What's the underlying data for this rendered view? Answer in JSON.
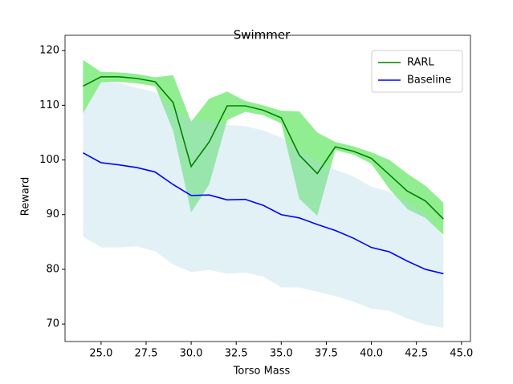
{
  "chart_data": {
    "type": "line",
    "title": "Swimmer",
    "x_label": "Torso Mass",
    "y_label": "Reward",
    "x": [
      24,
      25,
      26,
      27,
      28,
      29,
      30,
      31,
      32,
      33,
      34,
      35,
      36,
      37,
      38,
      39,
      40,
      41,
      42,
      43,
      44
    ],
    "series": [
      {
        "name": "RARL",
        "color": "#008000",
        "band_color": "#90ee90",
        "values": [
          113.5,
          115.2,
          115.2,
          114.9,
          114.3,
          110.5,
          98.8,
          103.3,
          109.9,
          109.9,
          109.1,
          107.7,
          100.9,
          97.5,
          102.4,
          101.6,
          100.3,
          97.3,
          94.3,
          92.5,
          89.2
        ],
        "upper": [
          118.3,
          116.1,
          116.0,
          115.7,
          115.1,
          115.5,
          107.0,
          111.2,
          112.5,
          110.8,
          110.0,
          109.0,
          108.9,
          105.0,
          103.3,
          102.5,
          101.4,
          100.0,
          97.5,
          95.3,
          92.2
        ],
        "lower": [
          108.5,
          114.2,
          114.3,
          114.0,
          113.5,
          105.3,
          90.4,
          95.5,
          107.3,
          108.8,
          108.2,
          106.7,
          92.9,
          89.8,
          101.8,
          101.0,
          99.3,
          94.7,
          91.0,
          89.4,
          86.3
        ]
      },
      {
        "name": "Baseline",
        "color": "#0000ff",
        "band_color": "#add8e6",
        "values": [
          101.3,
          99.5,
          99.1,
          98.6,
          97.8,
          95.5,
          93.5,
          93.6,
          92.7,
          92.8,
          91.7,
          90.0,
          89.4,
          88.2,
          87.1,
          85.7,
          84.0,
          83.2,
          81.5,
          80.0,
          79.2
        ],
        "upper": [
          108.5,
          114.2,
          114.1,
          113.2,
          112.4,
          109.3,
          107.5,
          107.1,
          106.4,
          106.2,
          105.4,
          104.1,
          101.8,
          99.8,
          98.2,
          97.0,
          95.1,
          94.2,
          92.3,
          90.2,
          86.0
        ],
        "lower": [
          86.0,
          84.0,
          84.0,
          84.2,
          83.3,
          80.9,
          79.5,
          79.9,
          79.2,
          79.4,
          78.7,
          76.7,
          76.7,
          75.9,
          75.1,
          74.1,
          72.8,
          72.4,
          71.0,
          69.9,
          69.3
        ]
      }
    ],
    "xlim": [
      23,
      45.5
    ],
    "ylim": [
      66.8,
      122.8
    ],
    "xticks": [
      {
        "value": 25,
        "label": "25.0"
      },
      {
        "value": 27.5,
        "label": "27.5"
      },
      {
        "value": 30,
        "label": "30.0"
      },
      {
        "value": 32.5,
        "label": "32.5"
      },
      {
        "value": 35,
        "label": "35.0"
      },
      {
        "value": 37.5,
        "label": "37.5"
      },
      {
        "value": 40,
        "label": "40.0"
      },
      {
        "value": 42.5,
        "label": "42.5"
      },
      {
        "value": 45,
        "label": "45.0"
      }
    ],
    "yticks": [
      70,
      80,
      90,
      100,
      110,
      120
    ],
    "legend": "upper right",
    "grid": false
  }
}
